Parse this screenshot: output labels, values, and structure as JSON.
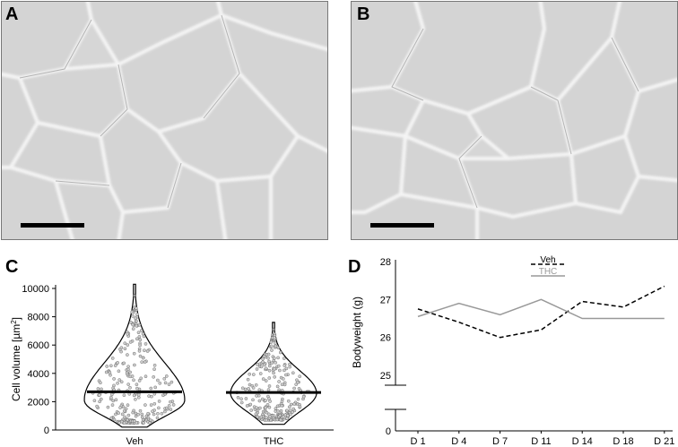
{
  "panels": {
    "A": {
      "letter": "A",
      "content": "micrograph of adipose tissue, Veh"
    },
    "B": {
      "letter": "B",
      "content": "micrograph of adipose tissue, THC"
    },
    "C": {
      "letter": "C"
    },
    "D": {
      "letter": "D"
    }
  },
  "chart_data": [
    {
      "panel": "C",
      "type": "violin",
      "ylabel": "Cell volume [µm²]",
      "ylabel_main": "Cell volume [µm",
      "ylabel_sup": "2",
      "ylabel_end": "]",
      "ylim": [
        0,
        10000
      ],
      "yticks": [
        0,
        2000,
        4000,
        6000,
        8000,
        10000
      ],
      "categories": [
        "Veh",
        "THC"
      ],
      "series": [
        {
          "name": "Veh",
          "median": 2700,
          "min": 200,
          "max": 10300,
          "mode": 2100,
          "outlier": 9500
        },
        {
          "name": "THC",
          "median": 2650,
          "min": 400,
          "max": 7600,
          "mode": 2600,
          "outlier": 7100
        }
      ],
      "grid": false
    },
    {
      "panel": "D",
      "type": "line",
      "ylabel": "Bodyweight (g)",
      "ylim": [
        25,
        28
      ],
      "yticks": [
        0,
        25,
        26,
        27,
        28
      ],
      "axis_break": true,
      "categories": [
        "D 1",
        "D 4",
        "D 7",
        "D 11",
        "D 14",
        "D 18",
        "D 21"
      ],
      "series": [
        {
          "name": "Veh",
          "style": "dashed",
          "color": "#000000",
          "values": [
            26.75,
            26.4,
            26.0,
            26.2,
            26.95,
            26.8,
            27.35
          ]
        },
        {
          "name": "THC",
          "style": "solid",
          "color": "#999999",
          "values": [
            26.55,
            26.9,
            26.6,
            27.0,
            26.5,
            26.5,
            26.5
          ]
        }
      ],
      "legend": "top-center",
      "grid": false
    }
  ]
}
